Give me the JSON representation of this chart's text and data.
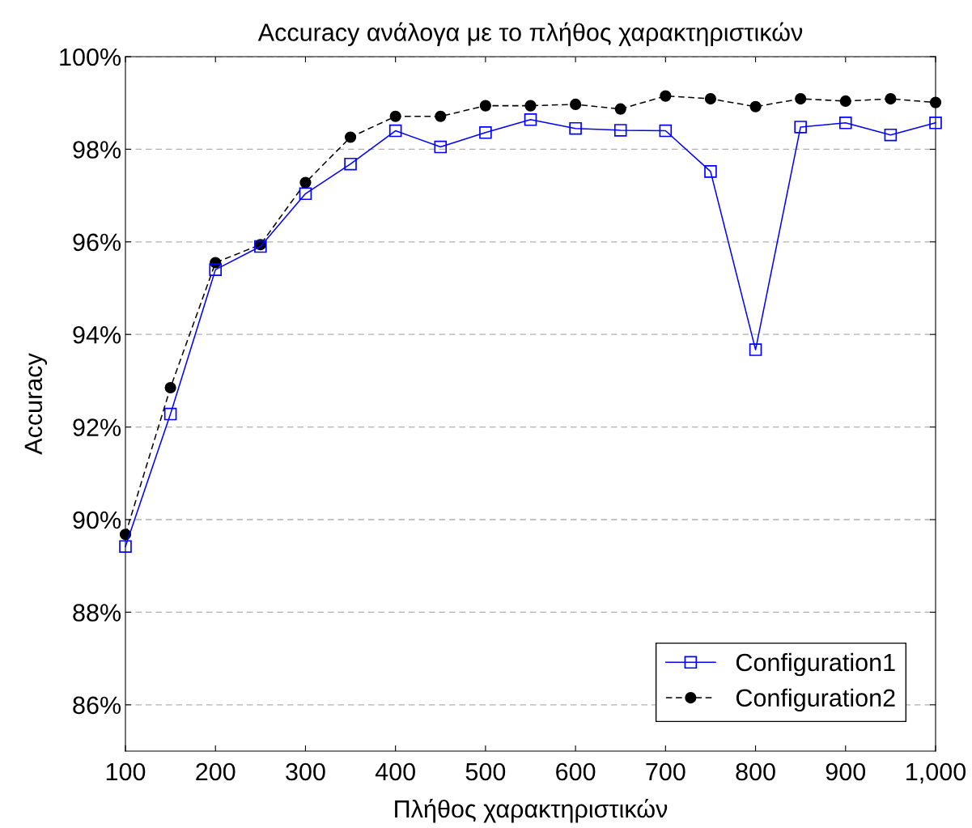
{
  "chart_data": {
    "type": "line",
    "title": "Accuracy ανάλογα με το πλήθος χαρακτηριστικών",
    "xlabel": "Πλήθος χαρακτηριστικών",
    "ylabel": "Accuracy",
    "x": [
      100,
      150,
      200,
      250,
      300,
      350,
      400,
      450,
      500,
      550,
      600,
      650,
      700,
      750,
      800,
      850,
      900,
      950,
      1000
    ],
    "series": [
      {
        "name": "Configuration1",
        "color": "#0000ff",
        "marker": "square",
        "line_style": "solid",
        "values": [
          89.42,
          92.28,
          95.4,
          95.9,
          97.04,
          97.68,
          98.4,
          98.05,
          98.36,
          98.64,
          98.45,
          98.41,
          98.4,
          97.52,
          93.67,
          98.48,
          98.57,
          98.31,
          98.57
        ]
      },
      {
        "name": "Configuration2",
        "color": "#000000",
        "marker": "circle",
        "line_style": "dashed",
        "values": [
          89.68,
          92.85,
          95.55,
          95.94,
          97.28,
          98.26,
          98.71,
          98.71,
          98.94,
          98.94,
          98.97,
          98.87,
          99.15,
          99.09,
          98.92,
          99.09,
          99.04,
          99.09,
          99.01
        ]
      }
    ],
    "xlim": [
      100,
      1000
    ],
    "xticks": [
      100,
      200,
      300,
      400,
      500,
      600,
      700,
      800,
      900,
      {
        "value": 1000,
        "label": "1,000"
      }
    ],
    "ylim": [
      85,
      100
    ],
    "yticks": [
      {
        "value": 86,
        "label": "86%"
      },
      {
        "value": 88,
        "label": "88%"
      },
      {
        "value": 90,
        "label": "90%"
      },
      {
        "value": 92,
        "label": "92%"
      },
      {
        "value": 94,
        "label": "94%"
      },
      {
        "value": 96,
        "label": "96%"
      },
      {
        "value": 98,
        "label": "98%"
      },
      {
        "value": 100,
        "label": "100%"
      }
    ],
    "grid": "y",
    "legend": "bottom right"
  }
}
